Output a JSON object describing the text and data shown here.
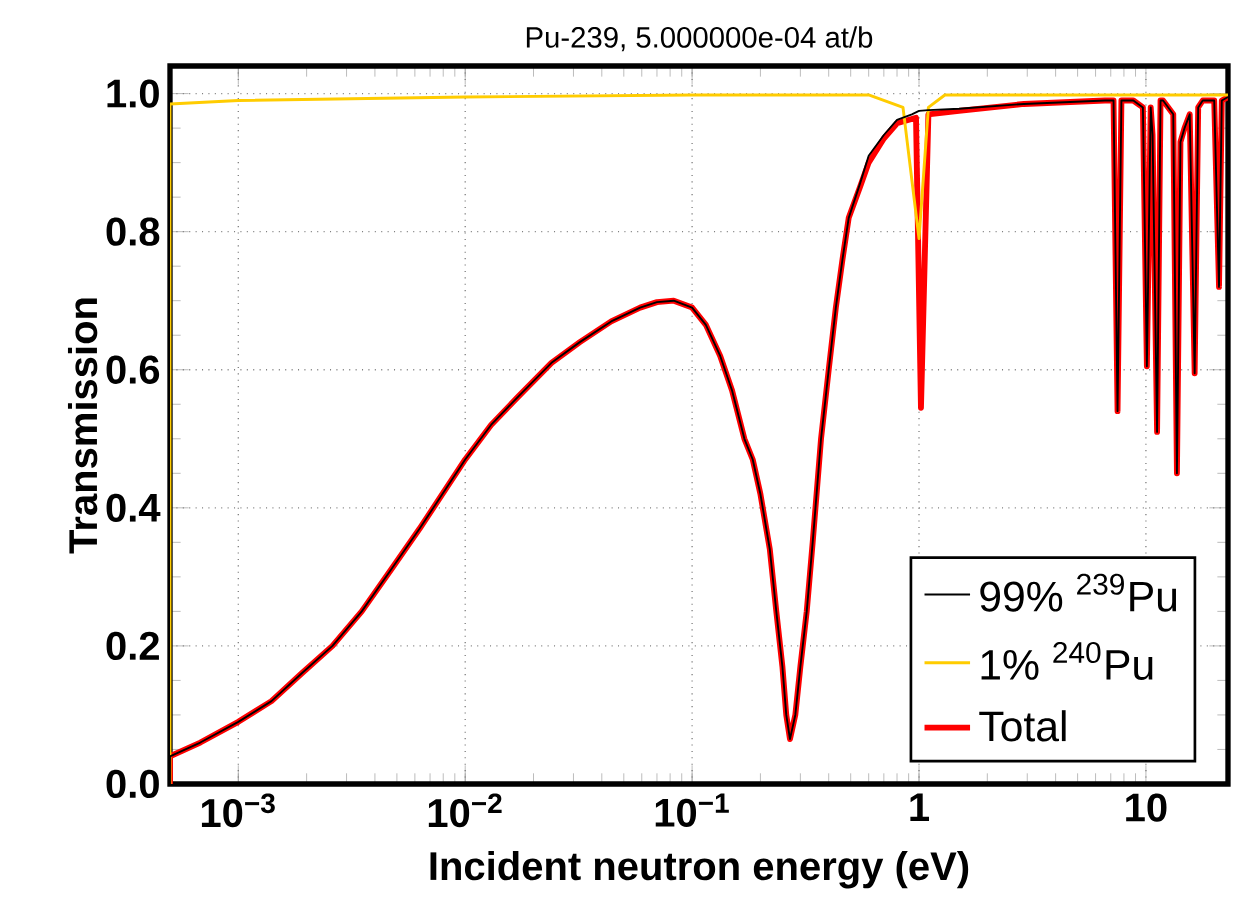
{
  "chart_data": {
    "type": "line",
    "title": "Pu-239, 5.000000e-04 at/b",
    "xlabel": "Incident neutron energy (eV)",
    "ylabel": "Transmission",
    "log": "x",
    "xlim": [
      0.0005,
      23
    ],
    "ylim": [
      0,
      1.04
    ],
    "xticks": [
      {
        "value": 0.001,
        "label": "10$^{−3}$"
      },
      {
        "value": 0.01,
        "label": "10$^{−2}$"
      },
      {
        "value": 0.1,
        "label": "10$^{−1}$"
      },
      1,
      10
    ],
    "yticks": [
      {
        "value": 0,
        "label": "0.0"
      },
      0.2,
      0.4,
      0.6,
      0.8,
      {
        "value": 1,
        "label": "1.0"
      }
    ],
    "grid": true,
    "legend": "bottom right",
    "series": [
      {
        "name": "99% $^{239}$Pu",
        "color": "#000000",
        "x": [
          0.0005,
          0.0005,
          0.00068,
          0.001,
          0.0014,
          0.0019,
          0.0026,
          0.0035,
          0.0047,
          0.0063,
          0.01,
          0.013,
          0.017,
          0.024,
          0.032,
          0.044,
          0.059,
          0.07,
          0.083,
          0.1,
          0.115,
          0.133,
          0.15,
          0.17,
          0.185,
          0.2,
          0.22,
          0.235,
          0.25,
          0.26,
          0.27,
          0.285,
          0.3,
          0.32,
          0.34,
          0.37,
          0.4,
          0.43,
          0.46,
          0.49,
          0.55,
          0.6,
          0.7,
          0.8,
          0.93,
          1.0,
          1.1,
          1.5,
          2.9,
          6.6,
          7.2,
          7.5,
          7.8,
          8.8,
          9.7,
          10.1,
          10.5,
          10.7,
          11.2,
          11.6,
          11.9,
          13.2,
          13.7,
          14.2,
          14.8,
          15.6,
          16.4,
          17.0,
          17.8,
          20.0,
          21.0,
          21.6,
          23
        ],
        "values": [
          0.0,
          0.04,
          0.06,
          0.09,
          0.12,
          0.16,
          0.2,
          0.25,
          0.31,
          0.37,
          0.47,
          0.52,
          0.56,
          0.61,
          0.64,
          0.67,
          0.69,
          0.698,
          0.7,
          0.69,
          0.665,
          0.62,
          0.57,
          0.5,
          0.47,
          0.42,
          0.34,
          0.25,
          0.17,
          0.1,
          0.065,
          0.1,
          0.17,
          0.25,
          0.35,
          0.5,
          0.6,
          0.69,
          0.76,
          0.82,
          0.87,
          0.91,
          0.94,
          0.962,
          0.97,
          0.975,
          0.976,
          0.978,
          0.985,
          0.99,
          0.99,
          0.54,
          0.99,
          0.99,
          0.98,
          0.605,
          0.98,
          0.94,
          0.51,
          0.99,
          0.99,
          0.97,
          0.45,
          0.93,
          0.95,
          0.97,
          0.595,
          0.98,
          0.99,
          0.99,
          0.72,
          0.99,
          0.995
        ]
      },
      {
        "name": "1% $^{240}$Pu",
        "color": "#ffcc00",
        "x": [
          0.0005,
          0.0005,
          0.001,
          0.01,
          0.1,
          0.6,
          0.85,
          1.0,
          1.1,
          1.3,
          23
        ],
        "values": [
          0.0,
          0.985,
          0.99,
          0.995,
          0.998,
          0.998,
          0.98,
          0.79,
          0.98,
          0.998,
          0.998
        ]
      },
      {
        "name": "Total",
        "color": "#ff0000",
        "x": [
          0.0005,
          0.0005,
          0.00068,
          0.001,
          0.0014,
          0.0019,
          0.0026,
          0.0035,
          0.0047,
          0.0063,
          0.01,
          0.013,
          0.017,
          0.024,
          0.032,
          0.044,
          0.059,
          0.07,
          0.083,
          0.1,
          0.115,
          0.133,
          0.15,
          0.17,
          0.185,
          0.2,
          0.22,
          0.235,
          0.25,
          0.26,
          0.27,
          0.285,
          0.3,
          0.32,
          0.34,
          0.37,
          0.4,
          0.43,
          0.46,
          0.49,
          0.55,
          0.6,
          0.7,
          0.8,
          0.97,
          1.02,
          1.1,
          1.5,
          2.9,
          6.6,
          7.2,
          7.5,
          7.8,
          8.8,
          9.7,
          10.1,
          10.5,
          10.7,
          11.2,
          11.6,
          11.9,
          13.2,
          13.7,
          14.2,
          14.8,
          15.6,
          16.4,
          17.0,
          17.8,
          20.0,
          21.0,
          21.6,
          23
        ],
        "values": [
          0.0,
          0.04,
          0.06,
          0.09,
          0.12,
          0.16,
          0.2,
          0.25,
          0.31,
          0.37,
          0.47,
          0.52,
          0.56,
          0.61,
          0.64,
          0.67,
          0.69,
          0.698,
          0.7,
          0.69,
          0.665,
          0.62,
          0.57,
          0.5,
          0.47,
          0.42,
          0.34,
          0.25,
          0.17,
          0.1,
          0.065,
          0.1,
          0.17,
          0.25,
          0.35,
          0.5,
          0.6,
          0.69,
          0.76,
          0.82,
          0.865,
          0.9,
          0.935,
          0.957,
          0.965,
          0.545,
          0.97,
          0.975,
          0.985,
          0.99,
          0.99,
          0.54,
          0.99,
          0.99,
          0.98,
          0.605,
          0.98,
          0.94,
          0.51,
          0.99,
          0.99,
          0.97,
          0.45,
          0.93,
          0.95,
          0.97,
          0.595,
          0.98,
          0.99,
          0.99,
          0.72,
          0.99,
          0.995
        ]
      }
    ]
  }
}
